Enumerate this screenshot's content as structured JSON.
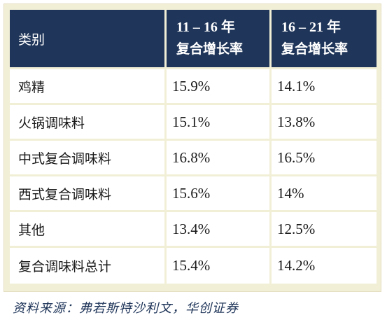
{
  "table": {
    "header": {
      "category": "类别",
      "col1_line1": "11 – 16 年",
      "col1_line2": "复合增长率",
      "col2_line1": "16 – 21 年",
      "col2_line2": "复合增长率"
    },
    "rows": [
      {
        "category": "鸡精",
        "cagr_11_16": "15.9%",
        "cagr_16_21": "14.1%"
      },
      {
        "category": "火锅调味料",
        "cagr_11_16": "15.1%",
        "cagr_16_21": "13.8%"
      },
      {
        "category": "中式复合调味料",
        "cagr_11_16": "16.8%",
        "cagr_16_21": "16.5%"
      },
      {
        "category": "西式复合调味料",
        "cagr_11_16": "15.6%",
        "cagr_16_21": "14%"
      },
      {
        "category": "其他",
        "cagr_11_16": "13.4%",
        "cagr_16_21": "12.5%"
      },
      {
        "category": "复合调味料总计",
        "cagr_11_16": "15.4%",
        "cagr_16_21": "14.2%"
      }
    ]
  },
  "source": "资料来源：弗若斯特沙利文，华创证券",
  "colors": {
    "header_bg": "#1f3559",
    "frame_bg": "#f2efd7",
    "source_text": "#1f3559"
  }
}
